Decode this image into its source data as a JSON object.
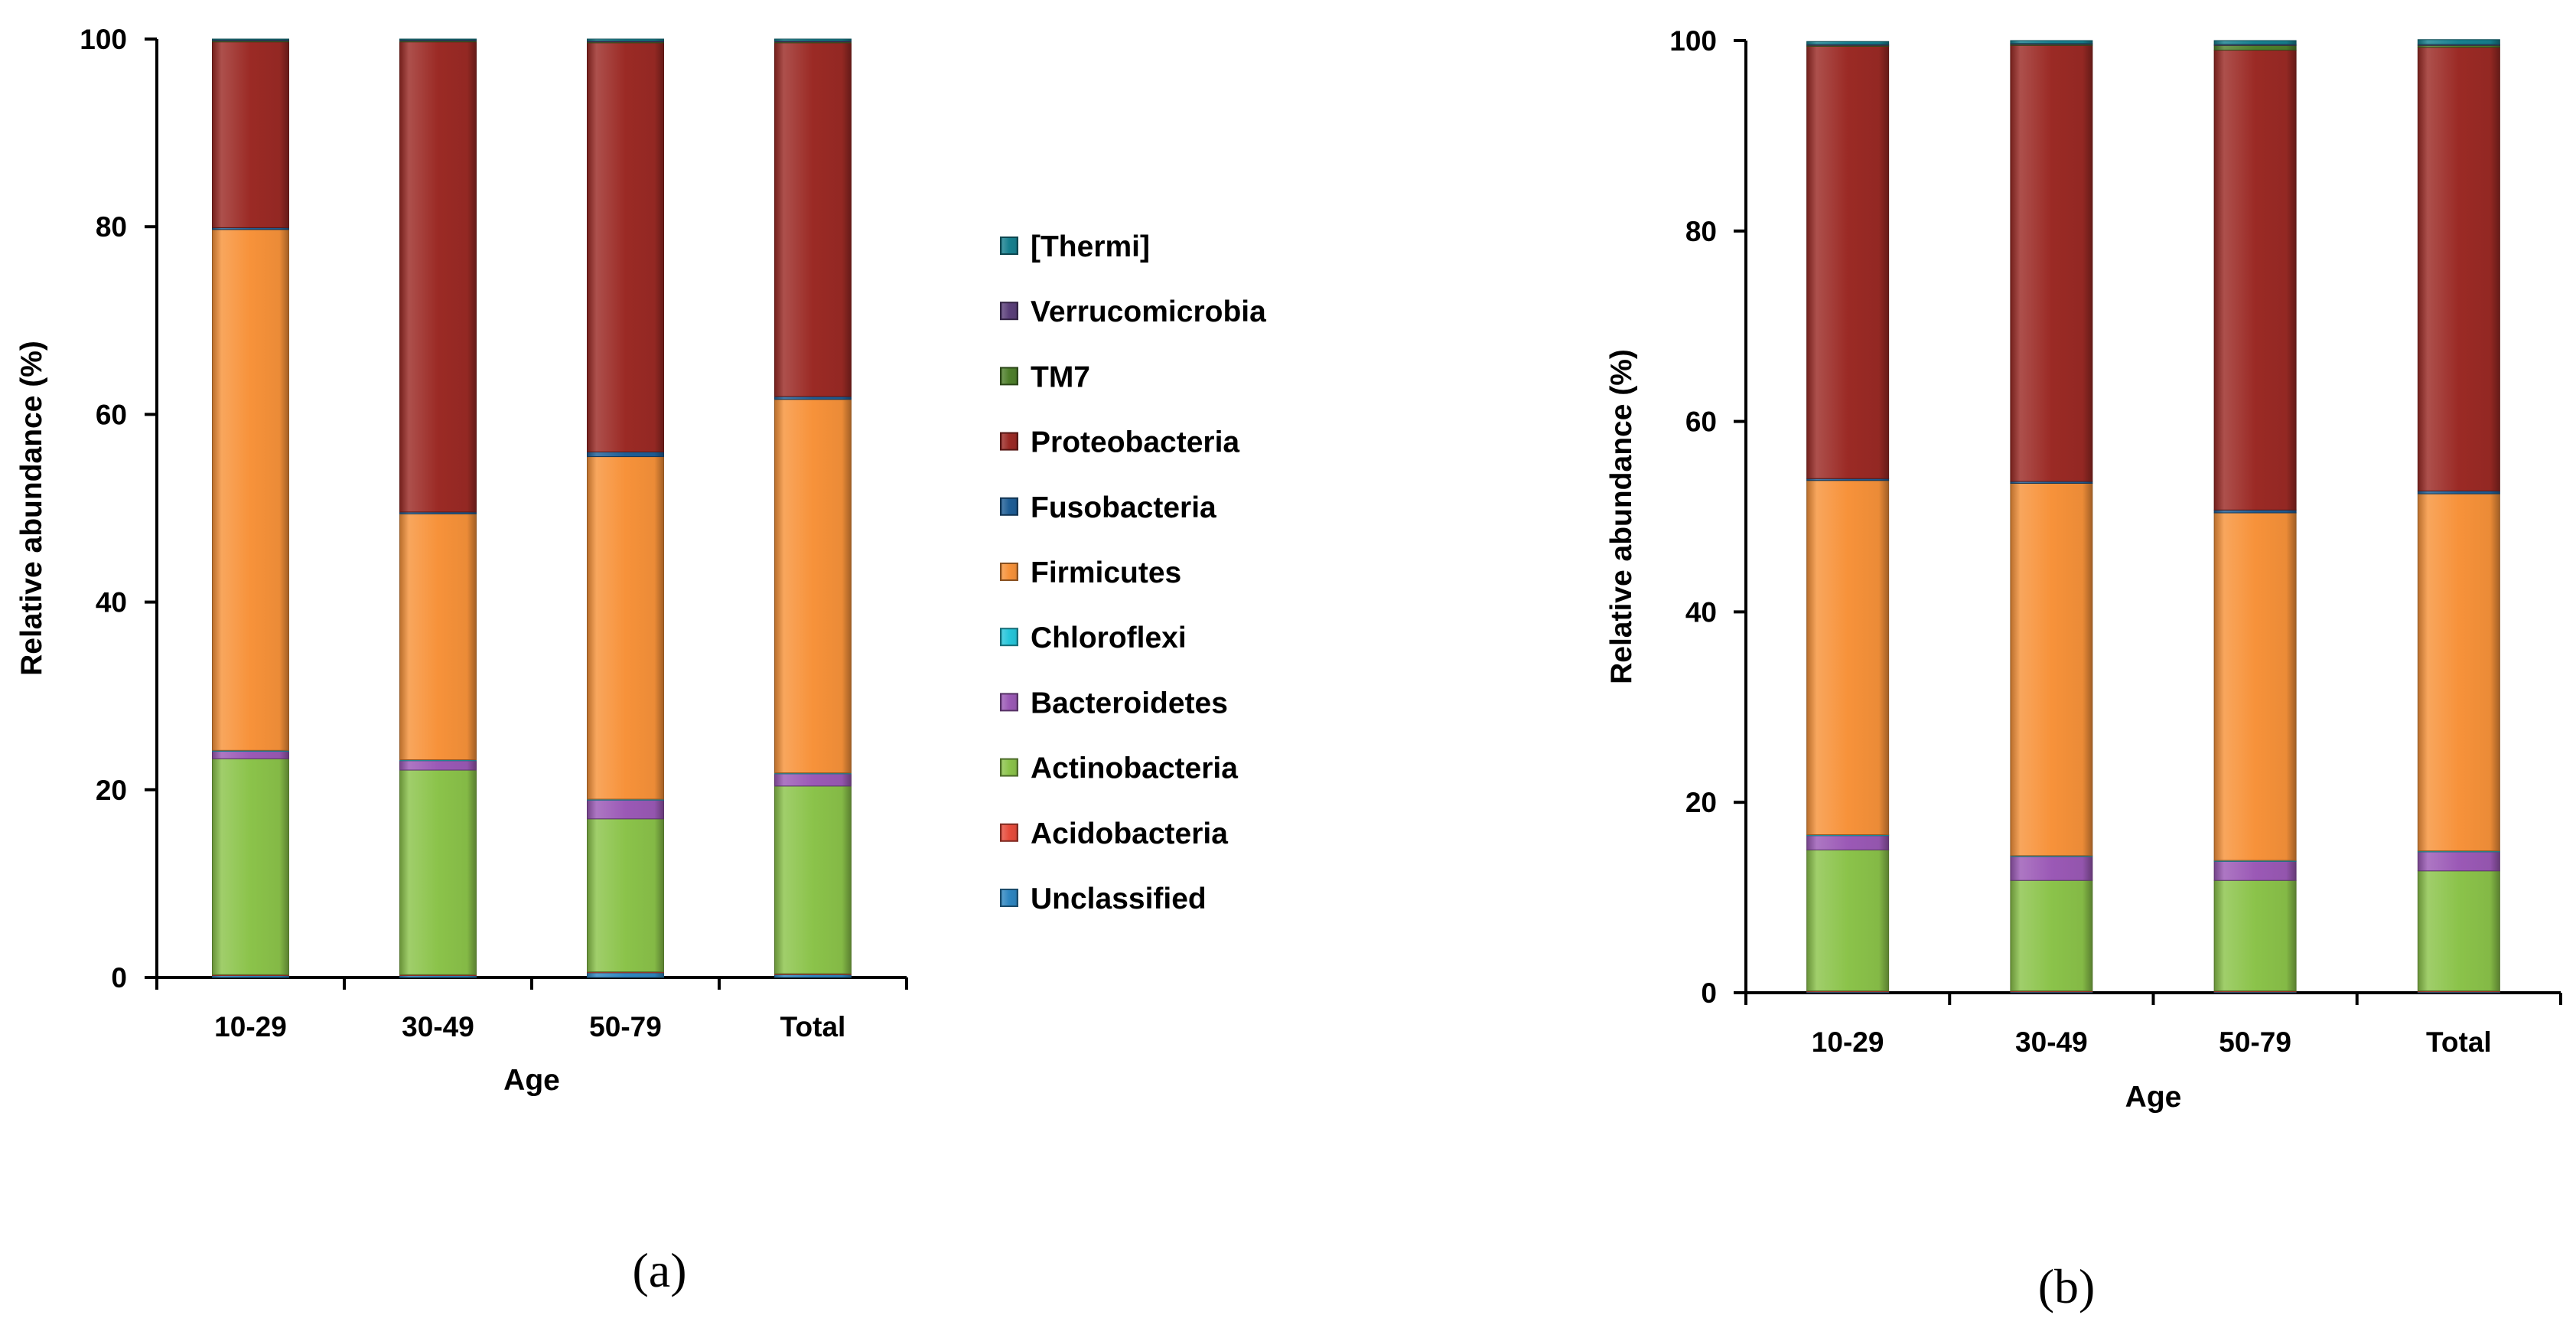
{
  "series_colors": {
    "Unclassified": "#2E86C1",
    "Acidobacteria": "#E74C3C",
    "Actinobacteria": "#8BC34A",
    "Bacteroidetes": "#9B59B6",
    "Chloroflexi": "#26C6DA",
    "Firmicutes": "#F7923A",
    "Fusobacteria": "#1F5E96",
    "Proteobacteria": "#9B2A25",
    "TM7": "#4E7F2B",
    "Verrucomicrobia": "#5B3F7A",
    "[Thermi]": "#17808F"
  },
  "legend": {
    "entries": [
      "[Thermi]",
      "Verrucomicrobia",
      "TM7",
      "Proteobacteria",
      "Fusobacteria",
      "Firmicutes",
      "Chloroflexi",
      "Bacteroidetes",
      "Actinobacteria",
      "Acidobacteria",
      "Unclassified"
    ]
  },
  "chart_data": [
    {
      "type": "bar",
      "stacked": true,
      "panel_label": "(a)",
      "categories": [
        "10-29",
        "30-49",
        "50-79",
        "Total"
      ],
      "xlabel": "Age",
      "ylabel": "Relative abundance  (%)",
      "ylim": [
        0,
        100
      ],
      "yticks": [
        0,
        20,
        40,
        60,
        80,
        100
      ],
      "grid": false,
      "legend_position": "right",
      "series": [
        {
          "name": "Unclassified",
          "values": [
            0.2,
            0.2,
            0.5,
            0.3
          ]
        },
        {
          "name": "Acidobacteria",
          "values": [
            0.1,
            0.1,
            0.1,
            0.1
          ]
        },
        {
          "name": "Actinobacteria",
          "values": [
            23.0,
            21.8,
            16.3,
            20.0
          ]
        },
        {
          "name": "Bacteroidetes",
          "values": [
            0.8,
            1.0,
            2.0,
            1.3
          ]
        },
        {
          "name": "Chloroflexi",
          "values": [
            0.1,
            0.1,
            0.1,
            0.1
          ]
        },
        {
          "name": "Firmicutes",
          "values": [
            55.5,
            26.2,
            36.5,
            39.8
          ]
        },
        {
          "name": "Fusobacteria",
          "values": [
            0.2,
            0.2,
            0.5,
            0.3
          ]
        },
        {
          "name": "Proteobacteria",
          "values": [
            19.8,
            50.1,
            43.6,
            37.7
          ]
        },
        {
          "name": "TM7",
          "values": [
            0.1,
            0.1,
            0.1,
            0.1
          ]
        },
        {
          "name": "Verrucomicrobia",
          "values": [
            0.1,
            0.1,
            0.1,
            0.1
          ]
        },
        {
          "name": "[Thermi]",
          "values": [
            0.1,
            0.1,
            0.2,
            0.2
          ]
        }
      ]
    },
    {
      "type": "bar",
      "stacked": true,
      "panel_label": "(b)",
      "categories": [
        "10-29",
        "30-49",
        "50-79",
        "Total"
      ],
      "xlabel": "Age",
      "ylabel": "Relative abundance  (%)",
      "ylim": [
        0,
        100
      ],
      "yticks": [
        0,
        20,
        40,
        60,
        80,
        100
      ],
      "grid": false,
      "series": [
        {
          "name": "Unclassified",
          "values": [
            0.1,
            0.1,
            0.1,
            0.1
          ]
        },
        {
          "name": "Acidobacteria",
          "values": [
            0.1,
            0.1,
            0.1,
            0.1
          ]
        },
        {
          "name": "Actinobacteria",
          "values": [
            14.8,
            11.6,
            11.6,
            12.6
          ]
        },
        {
          "name": "Bacteroidetes",
          "values": [
            1.5,
            2.5,
            2.0,
            2.0
          ]
        },
        {
          "name": "Chloroflexi",
          "values": [
            0.1,
            0.1,
            0.1,
            0.1
          ]
        },
        {
          "name": "Firmicutes",
          "values": [
            37.2,
            39.1,
            36.5,
            37.5
          ]
        },
        {
          "name": "Fusobacteria",
          "values": [
            0.2,
            0.2,
            0.3,
            0.3
          ]
        },
        {
          "name": "Proteobacteria",
          "values": [
            45.4,
            45.8,
            48.3,
            46.6
          ]
        },
        {
          "name": "TM7",
          "values": [
            0.1,
            0.1,
            0.5,
            0.2
          ]
        },
        {
          "name": "Verrucomicrobia",
          "values": [
            0.1,
            0.1,
            0.1,
            0.1
          ]
        },
        {
          "name": "[Thermi]",
          "values": [
            0.3,
            0.3,
            0.4,
            0.5
          ]
        }
      ]
    }
  ]
}
